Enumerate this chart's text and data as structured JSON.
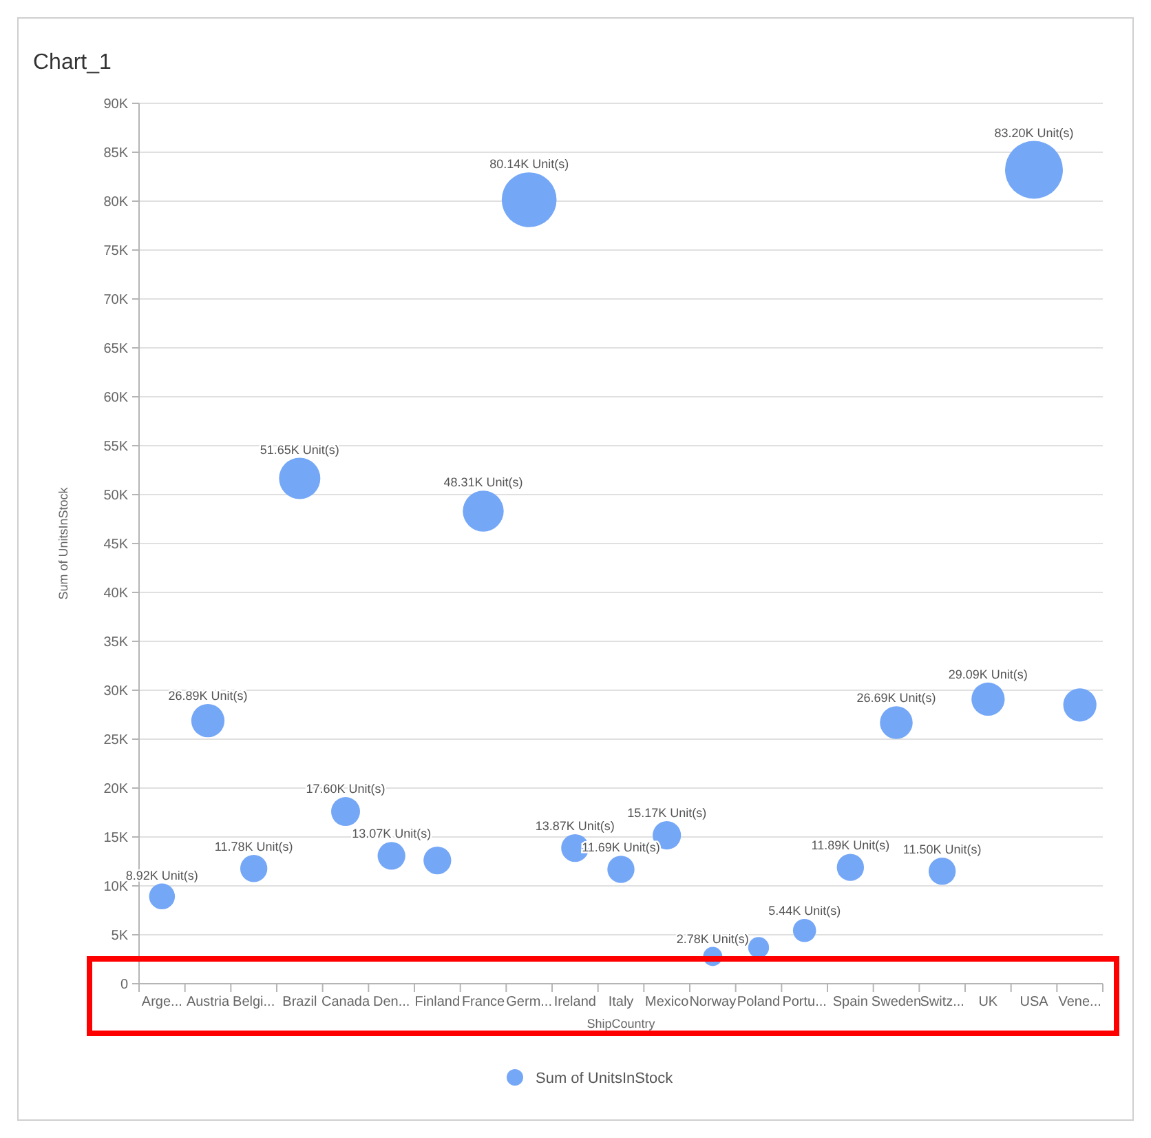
{
  "chart_data": {
    "type": "bubble",
    "title": "Chart_1",
    "xlabel": "ShipCountry",
    "ylabel": "Sum of UnitsInStock",
    "categories": [
      "Arge...",
      "Austria",
      "Belgi...",
      "Brazil",
      "Canada",
      "Den...",
      "Finland",
      "France",
      "Germ...",
      "Ireland",
      "Italy",
      "Mexico",
      "Norway",
      "Poland",
      "Portu...",
      "Spain",
      "Sweden",
      "Switz...",
      "UK",
      "USA",
      "Vene..."
    ],
    "series": [
      {
        "name": "Sum of UnitsInStock",
        "color": "#75a7f7",
        "values": [
          8920,
          26890,
          11780,
          51650,
          17600,
          13070,
          12600,
          48310,
          80140,
          13870,
          11690,
          15170,
          2780,
          3700,
          5440,
          11890,
          26690,
          11500,
          29090,
          83200,
          28500
        ],
        "sizes": [
          0.2,
          0.33,
          0.22,
          0.51,
          0.25,
          0.23,
          0.23,
          0.5,
          0.9,
          0.23,
          0.22,
          0.24,
          0.11,
          0.13,
          0.16,
          0.22,
          0.32,
          0.22,
          0.33,
          1,
          0.33
        ],
        "value_labels": [
          "8.92K Unit(s)",
          "26.89K Unit(s)",
          "11.78K Unit(s)",
          "51.65K Unit(s)",
          "17.60K Unit(s)",
          "13.07K Unit(s)",
          null,
          "48.31K Unit(s)",
          "80.14K Unit(s)",
          "13.87K Unit(s)",
          "11.69K Unit(s)",
          "15.17K Unit(s)",
          "2.78K Unit(s)",
          null,
          "5.44K Unit(s)",
          "11.89K Unit(s)",
          "26.69K Unit(s)",
          "11.50K Unit(s)",
          "29.09K Unit(s)",
          "83.20K Unit(s)",
          null
        ]
      }
    ],
    "ylim": [
      0,
      90000
    ],
    "yticks": [
      0,
      {
        "value": 5000,
        "label": "5K"
      },
      {
        "value": 10000,
        "label": "10K"
      },
      {
        "value": 15000,
        "label": "15K"
      },
      {
        "value": 20000,
        "label": "20K"
      },
      {
        "value": 25000,
        "label": "25K"
      },
      {
        "value": 30000,
        "label": "30K"
      },
      {
        "value": 35000,
        "label": "35K"
      },
      {
        "value": 40000,
        "label": "40K"
      },
      {
        "value": 45000,
        "label": "45K"
      },
      {
        "value": 50000,
        "label": "50K"
      },
      {
        "value": 55000,
        "label": "55K"
      },
      {
        "value": 60000,
        "label": "60K"
      },
      {
        "value": 65000,
        "label": "65K"
      },
      {
        "value": 70000,
        "label": "70K"
      },
      {
        "value": 75000,
        "label": "75K"
      },
      {
        "value": 80000,
        "label": "80K"
      },
      {
        "value": 85000,
        "label": "85K"
      },
      {
        "value": 90000,
        "label": "90K"
      }
    ],
    "grid": "y",
    "legend": "bottom",
    "marker": "circle"
  }
}
